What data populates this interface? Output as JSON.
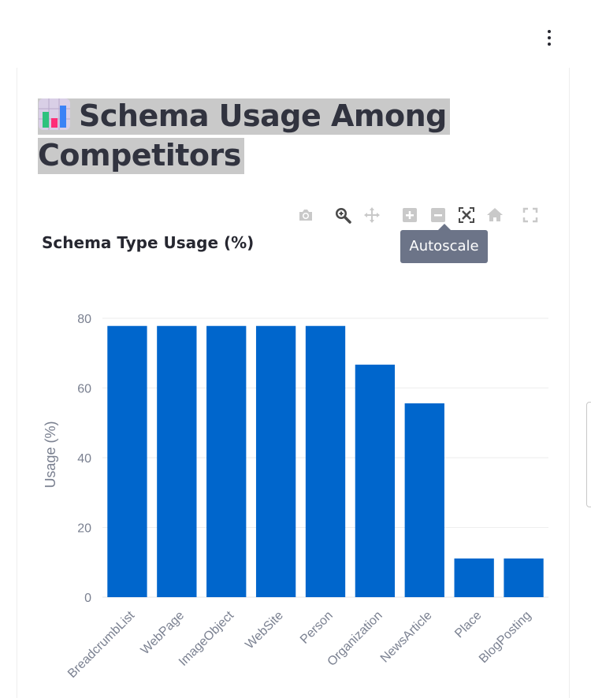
{
  "header": {
    "menu_icon": "kebab-menu-icon"
  },
  "page": {
    "title": "Schema Usage Among Competitors",
    "title_icon": "bar-chart-emoji-icon"
  },
  "modebar": {
    "buttons": [
      {
        "icon": "camera-icon"
      },
      {
        "icon": "zoom-icon"
      },
      {
        "icon": "pan-icon"
      },
      {
        "icon": "zoom-in-icon"
      },
      {
        "icon": "zoom-out-icon"
      },
      {
        "icon": "autoscale-icon"
      },
      {
        "icon": "reset-axes-icon"
      },
      {
        "icon": "fullscreen-icon"
      }
    ],
    "tooltip": "Autoscale"
  },
  "chart_data": {
    "type": "bar",
    "title": "Schema Type Usage (%)",
    "xlabel": "",
    "ylabel": "Usage (%)",
    "categories": [
      "BreadcrumbList",
      "WebPage",
      "ImageObject",
      "WebSite",
      "Person",
      "Organization",
      "NewsArticle",
      "Place",
      "BlogPosting"
    ],
    "values": [
      77.8,
      77.8,
      77.8,
      77.8,
      77.8,
      66.7,
      55.6,
      11.1,
      11.1
    ],
    "ylim": [
      0,
      80
    ],
    "yticks": [
      0,
      20,
      40,
      60,
      80
    ],
    "grid": true,
    "bar_color": "#0066cc"
  }
}
